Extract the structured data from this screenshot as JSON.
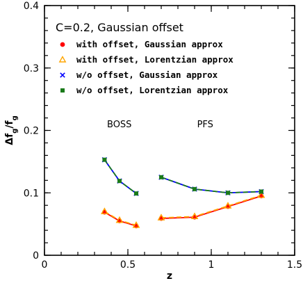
{
  "chart_data": {
    "type": "line",
    "xlabel": "z",
    "ylabel": "Δf_g/f_g",
    "xlim": [
      0,
      1.5
    ],
    "ylim": [
      0,
      0.4
    ],
    "xticks": [
      0,
      0.5,
      1,
      1.5
    ],
    "xtick_labels": [
      "0",
      "0.5",
      "1",
      "1.5"
    ],
    "yticks": [
      0,
      0.1,
      0.2,
      0.3,
      0.4
    ],
    "ytick_labels": [
      "0",
      "0.1",
      "0.2",
      "0.3",
      "0.4"
    ],
    "grid": false,
    "legend_title": "C=0.2, Gaussian offset",
    "legend_position": "top-left",
    "annotations": [
      {
        "text": "BOSS",
        "x": 0.45,
        "y": 0.205
      },
      {
        "text": "PFS",
        "x": 0.99,
        "y": 0.205
      }
    ],
    "series": [
      {
        "name": "with offset, Gaussian approx",
        "marker": "circle",
        "color": "#ff0000",
        "line_color": "#ff0000",
        "line_style": "solid",
        "segments": [
          {
            "x": [
              0.36,
              0.45,
              0.55
            ],
            "y": [
              0.069,
              0.055,
              0.047
            ]
          },
          {
            "x": [
              0.7,
              0.9,
              1.1,
              1.3
            ],
            "y": [
              0.059,
              0.061,
              0.078,
              0.095
            ]
          }
        ]
      },
      {
        "name": "with offset, Lorentzian approx",
        "marker": "triangle-open",
        "color": "#ffa500",
        "line_color": "#ffa500",
        "line_style": "dashed",
        "segments": [
          {
            "x": [
              0.36,
              0.45,
              0.55
            ],
            "y": [
              0.07,
              0.056,
              0.048
            ]
          },
          {
            "x": [
              0.7,
              0.9,
              1.1,
              1.3
            ],
            "y": [
              0.06,
              0.062,
              0.079,
              0.096
            ]
          }
        ]
      },
      {
        "name": "w/o offset, Gaussian approx",
        "marker": "x",
        "color": "#0000ff",
        "line_color": "#0000ff",
        "line_style": "solid",
        "segments": [
          {
            "x": [
              0.36,
              0.45,
              0.55
            ],
            "y": [
              0.153,
              0.119,
              0.099
            ]
          },
          {
            "x": [
              0.7,
              0.9,
              1.1,
              1.3
            ],
            "y": [
              0.125,
              0.106,
              0.1,
              0.102
            ]
          }
        ]
      },
      {
        "name": "w/o offset, Lorentzian approx",
        "marker": "square-filled",
        "color": "#1a7a1a",
        "line_color": "#1a7a1a",
        "line_style": "dashed",
        "segments": [
          {
            "x": [
              0.36,
              0.45,
              0.55
            ],
            "y": [
              0.153,
              0.119,
              0.099
            ]
          },
          {
            "x": [
              0.7,
              0.9,
              1.1,
              1.3
            ],
            "y": [
              0.125,
              0.106,
              0.1,
              0.102
            ]
          }
        ]
      }
    ]
  }
}
